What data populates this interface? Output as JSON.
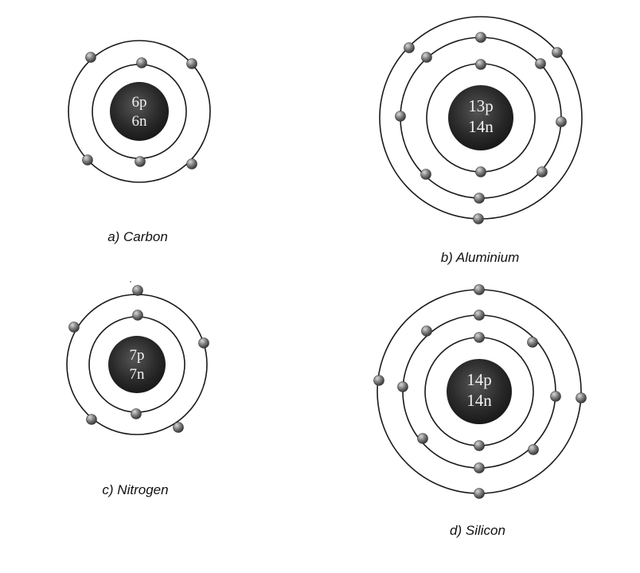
{
  "atoms": [
    {
      "id": "carbon",
      "nucleus_line1": "6p",
      "nucleus_line2": "6n",
      "caption": "a) Carbon",
      "shells": [
        2,
        4
      ]
    },
    {
      "id": "aluminium",
      "nucleus_line1": "13p",
      "nucleus_line2": "14n",
      "caption": "b) Aluminium",
      "shells": [
        2,
        8,
        3
      ]
    },
    {
      "id": "nitrogen",
      "nucleus_line1": "7p",
      "nucleus_line2": "7n",
      "caption": "c) Nitrogen",
      "shells": [
        2,
        5
      ]
    },
    {
      "id": "silicon",
      "nucleus_line1": "14p",
      "nucleus_line2": "14n",
      "caption": "d) Silicon",
      "shells": [
        2,
        8,
        4
      ]
    }
  ],
  "colors": {
    "orbit": "#1a1a1a",
    "nucleus": "#262626",
    "electron": "#7a7a7a"
  }
}
